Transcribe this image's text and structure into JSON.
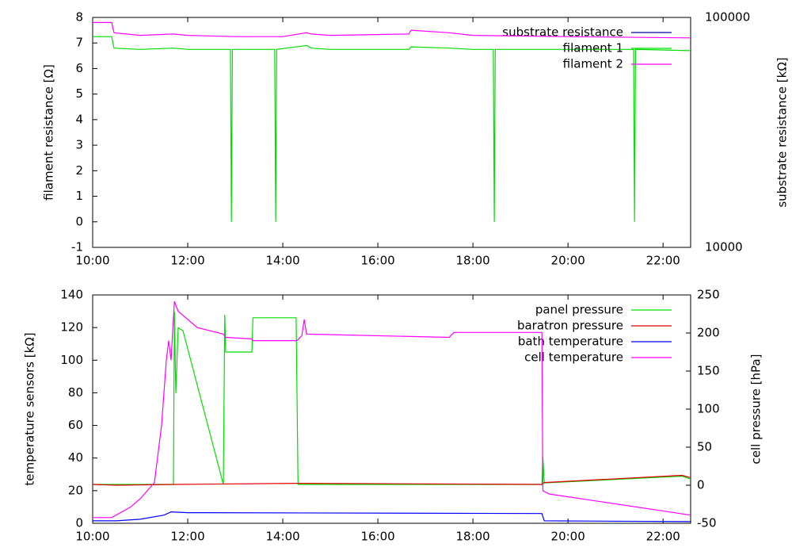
{
  "chart_data": [
    {
      "type": "line",
      "ylabel": "filament resistance [Ω]",
      "y2label": "substrate resistance [kΩ]",
      "xlim": [
        10,
        22.58
      ],
      "xticks": [
        {
          "value": 10,
          "label": "10:00"
        },
        {
          "value": 12,
          "label": "12:00"
        },
        {
          "value": 14,
          "label": "14:00"
        },
        {
          "value": 16,
          "label": "16:00"
        },
        {
          "value": 18,
          "label": "18:00"
        },
        {
          "value": 20,
          "label": "20:00"
        },
        {
          "value": 22,
          "label": "22:00"
        }
      ],
      "ylim": [
        -1,
        8
      ],
      "yticks": [
        -1,
        0,
        1,
        2,
        3,
        4,
        5,
        6,
        7,
        8
      ],
      "y2lim": [
        10000,
        100000
      ],
      "y2ticks": [
        10000,
        100000
      ],
      "y2log": true,
      "legend": "top-right",
      "series": [
        {
          "name": "substrate resistance",
          "color": "#0000a0",
          "axis": "y2"
        },
        {
          "name": "filament 1",
          "color": "#00dd00",
          "x": [
            10,
            10.4,
            10.45,
            11,
            11.7,
            12,
            12.9,
            12.92,
            12.94,
            13.83,
            13.85,
            13.87,
            14.5,
            14.6,
            15,
            16.65,
            16.7,
            17.5,
            18,
            18.43,
            18.45,
            18.47,
            20,
            21.38,
            21.4,
            21.42,
            22.58
          ],
          "values": [
            7.25,
            7.25,
            6.8,
            6.75,
            6.8,
            6.75,
            6.75,
            0,
            6.75,
            6.75,
            0,
            6.75,
            6.9,
            6.8,
            6.75,
            6.75,
            6.85,
            6.8,
            6.75,
            6.75,
            0,
            6.75,
            6.75,
            6.75,
            0,
            6.75,
            6.7
          ]
        },
        {
          "name": "filament 2",
          "color": "#ff00ff",
          "x": [
            10,
            10.4,
            10.45,
            11,
            11.7,
            12,
            13,
            14,
            14.5,
            14.6,
            15,
            16.65,
            16.7,
            17.5,
            18,
            20,
            22.58
          ],
          "values": [
            7.8,
            7.8,
            7.4,
            7.3,
            7.35,
            7.3,
            7.25,
            7.25,
            7.4,
            7.35,
            7.3,
            7.35,
            7.5,
            7.4,
            7.3,
            7.25,
            7.2
          ]
        }
      ]
    },
    {
      "type": "line",
      "ylabel": "temperature sensors [kΩ]",
      "y2label": "cell pressure [hPa]",
      "xlim": [
        10,
        22.58
      ],
      "xticks": [
        {
          "value": 10,
          "label": "10:00"
        },
        {
          "value": 12,
          "label": "12:00"
        },
        {
          "value": 14,
          "label": "14:00"
        },
        {
          "value": 16,
          "label": "16:00"
        },
        {
          "value": 18,
          "label": "18:00"
        },
        {
          "value": 20,
          "label": "20:00"
        },
        {
          "value": 22,
          "label": "22:00"
        }
      ],
      "ylim": [
        0,
        140
      ],
      "yticks": [
        0,
        20,
        40,
        60,
        80,
        100,
        120,
        140
      ],
      "y2lim": [
        -50,
        250
      ],
      "y2ticks": [
        -50,
        0,
        50,
        100,
        150,
        200,
        250
      ],
      "legend": "top-right",
      "series": [
        {
          "name": "panel pressure",
          "color": "#00dd00",
          "axis": "y2",
          "x": [
            10,
            11.7,
            11.72,
            11.75,
            11.8,
            11.9,
            12.75,
            12.78,
            12.8,
            13.35,
            13.37,
            14.28,
            14.32,
            19.45,
            19.47,
            19.5,
            22.4,
            22.58
          ],
          "values": [
            1,
            1,
            228,
            121,
            207,
            203,
            1,
            224,
            175,
            175,
            220,
            220,
            1,
            1,
            38,
            3,
            12,
            8
          ]
        },
        {
          "name": "baratron pressure",
          "color": "#e00000",
          "axis": "y2",
          "x": [
            10,
            10.5,
            11.7,
            14.3,
            19.45,
            19.5,
            22.4,
            22.58
          ],
          "values": [
            1,
            0,
            1,
            2.5,
            1,
            3.5,
            13,
            10
          ]
        },
        {
          "name": "bath temperature",
          "color": "#0000ff",
          "x": [
            10,
            10.5,
            11,
            11.5,
            11.65,
            12,
            19.45,
            19.5,
            22.58
          ],
          "values": [
            1.5,
            1.5,
            2.5,
            5,
            7,
            6.5,
            6,
            1.5,
            1
          ]
        },
        {
          "name": "cell temperature",
          "color": "#ff00ff",
          "x": [
            10,
            10.4,
            10.8,
            11,
            11.3,
            11.45,
            11.55,
            11.6,
            11.65,
            11.72,
            11.8,
            12.2,
            12.75,
            12.8,
            13.35,
            13.37,
            14.3,
            14.4,
            14.45,
            14.5,
            17.5,
            17.6,
            19.45,
            19.47,
            19.6,
            22.58
          ],
          "values": [
            3.5,
            3.5,
            10,
            15,
            25,
            60,
            100,
            112,
            100,
            136,
            130,
            120,
            116,
            114,
            113,
            112,
            112,
            115,
            125,
            116,
            114,
            117,
            117,
            20,
            18,
            5
          ]
        }
      ]
    }
  ]
}
